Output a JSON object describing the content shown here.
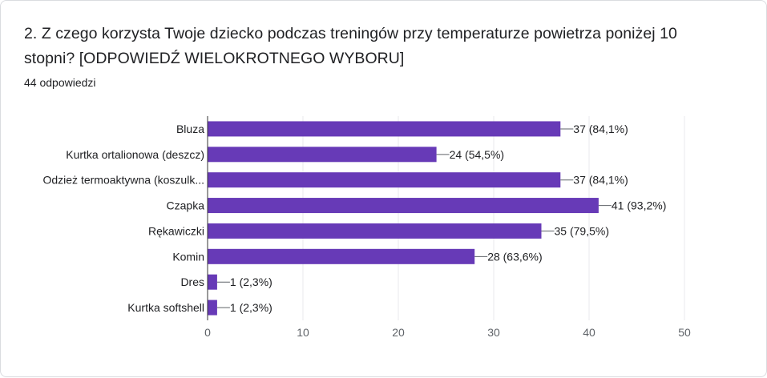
{
  "question": {
    "title": "2. Z czego korzysta Twoje dziecko podczas treningów przy temperaturze powietrza poniżej 10 stopni? [ODPOWIEDŹ WIELOKROTNEGO WYBORU]",
    "response_count": "44 odpowiedzi"
  },
  "colors": {
    "bar": "#673ab7",
    "grid": "#e8eaed",
    "axis": "#5f6368",
    "text": "#202124"
  },
  "chart_data": {
    "type": "bar",
    "orientation": "horizontal",
    "categories": [
      "Bluza",
      "Kurtka ortalionowa (deszcz)",
      "Odzież termoaktywna (koszulk...",
      "Czapka",
      "Rękawiczki",
      "Komin",
      "Dres",
      "Kurtka softshell"
    ],
    "values": [
      37,
      24,
      37,
      41,
      35,
      28,
      1,
      1
    ],
    "labels": [
      "37 (84,1%)",
      "24 (54,5%)",
      "37 (84,1%)",
      "41 (93,2%)",
      "35 (79,5%)",
      "28 (63,6%)",
      "1 (2,3%)",
      "1 (2,3%)"
    ],
    "xlim": [
      0,
      50
    ],
    "xticks": [
      "0",
      "10",
      "20",
      "30",
      "40",
      "50"
    ],
    "grid": true,
    "legend": "none"
  }
}
